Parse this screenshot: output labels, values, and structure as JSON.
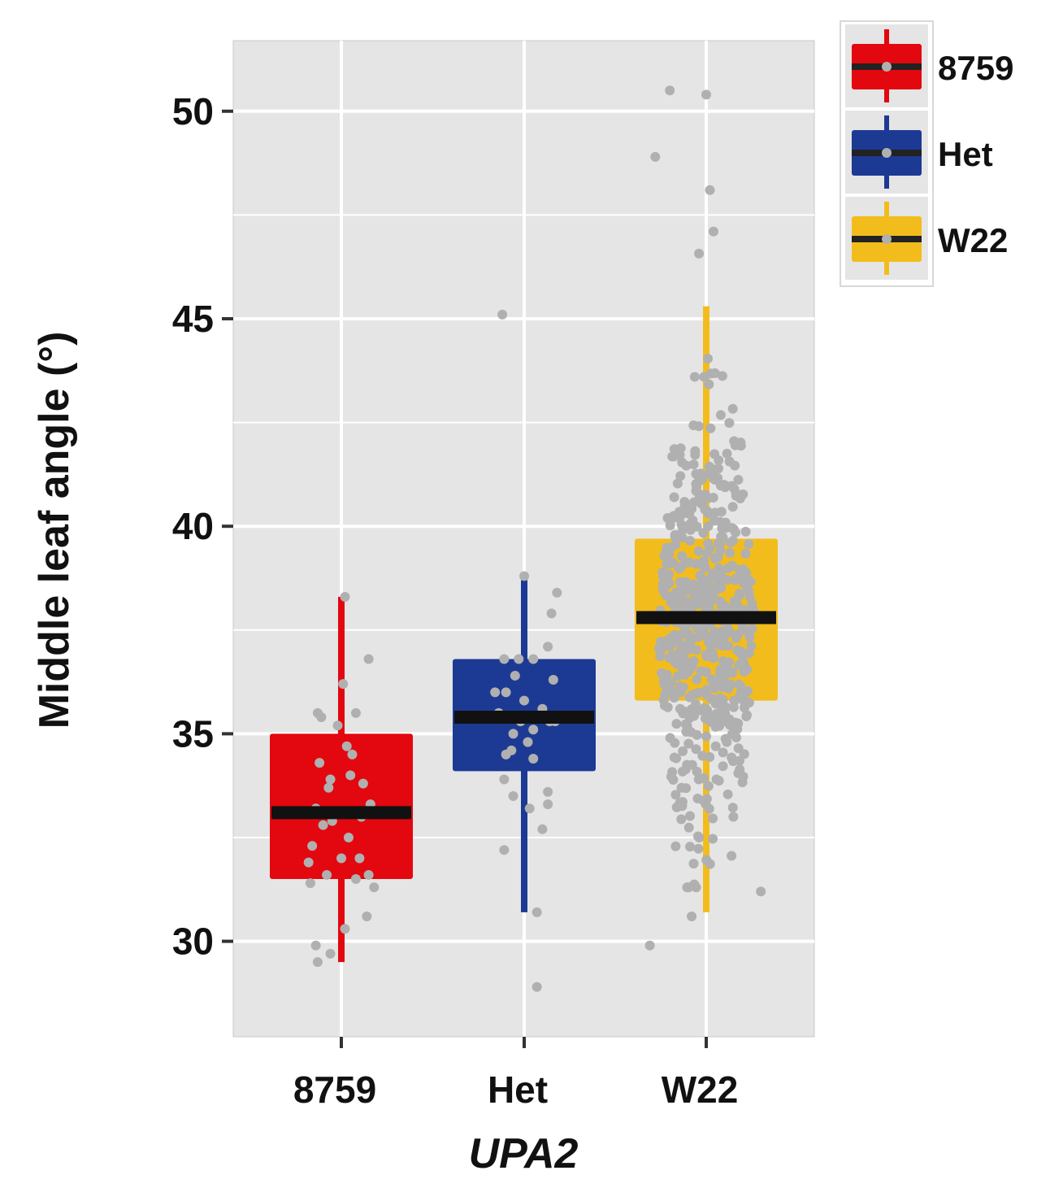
{
  "colors": {
    "panel_bg": "#e5e5e5",
    "grid": "#ffffff",
    "median": "#111111",
    "points": "#b0b0b0",
    "axis_ticks": "#333333"
  },
  "chart_data": {
    "type": "box",
    "xlabel": "UPA2",
    "ylabel": "Middle leaf angle (°)",
    "ylim": [
      27.7,
      51.7
    ],
    "yticks": [
      30,
      35,
      40,
      45,
      50
    ],
    "categories": [
      "8759",
      "Het",
      "W22"
    ],
    "grid": true,
    "legend_position": "top-right",
    "series": [
      {
        "name": "8759",
        "color": "#e3070f",
        "whisker_low": 29.5,
        "q1": 31.5,
        "median": 33.1,
        "q3": 35.0,
        "whisker_high": 38.3,
        "points": [
          [
            -0.13,
            29.5
          ],
          [
            -0.06,
            29.7
          ],
          [
            -0.14,
            29.9
          ],
          [
            0.02,
            30.3
          ],
          [
            0.14,
            30.6
          ],
          [
            0.18,
            31.3
          ],
          [
            -0.17,
            31.4
          ],
          [
            0.08,
            31.5
          ],
          [
            -0.08,
            31.6
          ],
          [
            0.15,
            31.6
          ],
          [
            -0.18,
            31.9
          ],
          [
            0.0,
            32.0
          ],
          [
            0.1,
            32.0
          ],
          [
            -0.16,
            32.3
          ],
          [
            0.04,
            32.5
          ],
          [
            -0.1,
            32.8
          ],
          [
            -0.05,
            32.9
          ],
          [
            0.11,
            33.0
          ],
          [
            0.2,
            33.1
          ],
          [
            -0.14,
            33.2
          ],
          [
            0.16,
            33.3
          ],
          [
            -0.07,
            33.7
          ],
          [
            0.12,
            33.8
          ],
          [
            -0.06,
            33.9
          ],
          [
            0.05,
            34.0
          ],
          [
            -0.12,
            34.3
          ],
          [
            0.06,
            34.5
          ],
          [
            0.03,
            34.7
          ],
          [
            -0.02,
            35.2
          ],
          [
            -0.11,
            35.4
          ],
          [
            -0.13,
            35.5
          ],
          [
            0.08,
            35.5
          ],
          [
            0.01,
            36.2
          ],
          [
            0.15,
            36.8
          ],
          [
            0.02,
            38.3
          ]
        ]
      },
      {
        "name": "Het",
        "color": "#1c3a94",
        "whisker_low": 30.7,
        "q1": 34.1,
        "median": 35.4,
        "q3": 36.8,
        "whisker_high": 38.7,
        "points": [
          [
            -0.12,
            45.1
          ],
          [
            0.0,
            38.8
          ],
          [
            0.18,
            38.4
          ],
          [
            0.15,
            37.9
          ],
          [
            0.13,
            37.1
          ],
          [
            -0.11,
            36.8
          ],
          [
            -0.03,
            36.8
          ],
          [
            0.05,
            36.8
          ],
          [
            -0.05,
            36.4
          ],
          [
            0.16,
            36.3
          ],
          [
            -0.16,
            36.0
          ],
          [
            -0.1,
            36.0
          ],
          [
            0.0,
            35.8
          ],
          [
            0.1,
            35.6
          ],
          [
            -0.14,
            35.5
          ],
          [
            0.07,
            35.4
          ],
          [
            -0.02,
            35.3
          ],
          [
            0.17,
            35.3
          ],
          [
            0.14,
            35.3
          ],
          [
            -0.06,
            35.0
          ],
          [
            0.05,
            35.1
          ],
          [
            0.02,
            34.8
          ],
          [
            -0.07,
            34.6
          ],
          [
            -0.1,
            34.5
          ],
          [
            0.05,
            34.4
          ],
          [
            -0.11,
            33.9
          ],
          [
            0.13,
            33.6
          ],
          [
            -0.06,
            33.5
          ],
          [
            0.13,
            33.3
          ],
          [
            0.03,
            33.2
          ],
          [
            0.1,
            32.7
          ],
          [
            -0.11,
            32.2
          ],
          [
            0.07,
            30.7
          ],
          [
            0.07,
            28.9
          ]
        ]
      },
      {
        "name": "W22",
        "color": "#f2bd1c",
        "whisker_low": 30.7,
        "q1": 35.8,
        "median": 37.8,
        "q3": 39.7,
        "whisker_high": 45.3,
        "points": []
      }
    ]
  }
}
